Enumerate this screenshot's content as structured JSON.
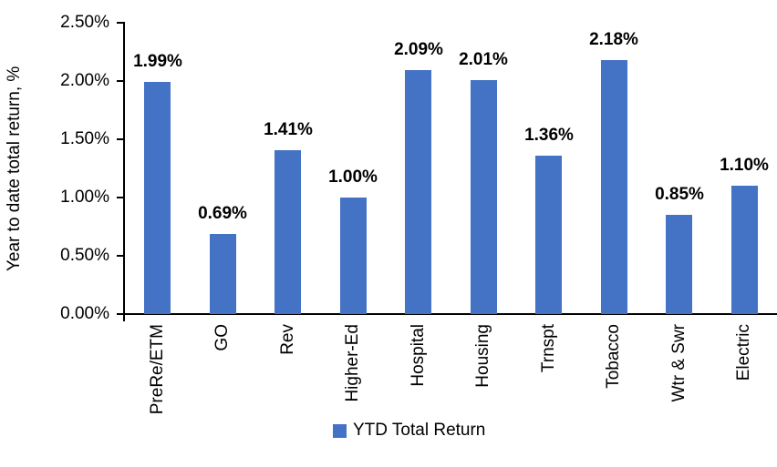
{
  "chart_data": {
    "type": "bar",
    "title": "",
    "ylabel": "Year to date total return, %",
    "xlabel": "",
    "categories": [
      "PreRe/ETM",
      "GO",
      "Rev",
      "Higher-Ed",
      "Hospital",
      "Housing",
      "Trnspt",
      "Tobacco",
      "Wtr & Swr",
      "Electric"
    ],
    "values": [
      1.99,
      0.69,
      1.41,
      1.0,
      2.09,
      2.01,
      1.36,
      2.18,
      0.85,
      1.1
    ],
    "value_labels": [
      "1.99%",
      "0.69%",
      "1.41%",
      "1.00%",
      "2.09%",
      "2.01%",
      "1.36%",
      "2.18%",
      "0.85%",
      "1.10%"
    ],
    "ylim": [
      0,
      2.5
    ],
    "ytick_labels": [
      "0.00%",
      "0.50%",
      "1.00%",
      "1.50%",
      "2.00%",
      "2.50%"
    ],
    "ytick_values": [
      0,
      0.5,
      1.0,
      1.5,
      2.0,
      2.5
    ],
    "grid": false,
    "bar_color": "#4472C4",
    "axis_color": "#000000",
    "legend_position": "bottom-center",
    "legend": [
      {
        "label": "YTD Total Return",
        "color": "#4472C4"
      }
    ]
  }
}
